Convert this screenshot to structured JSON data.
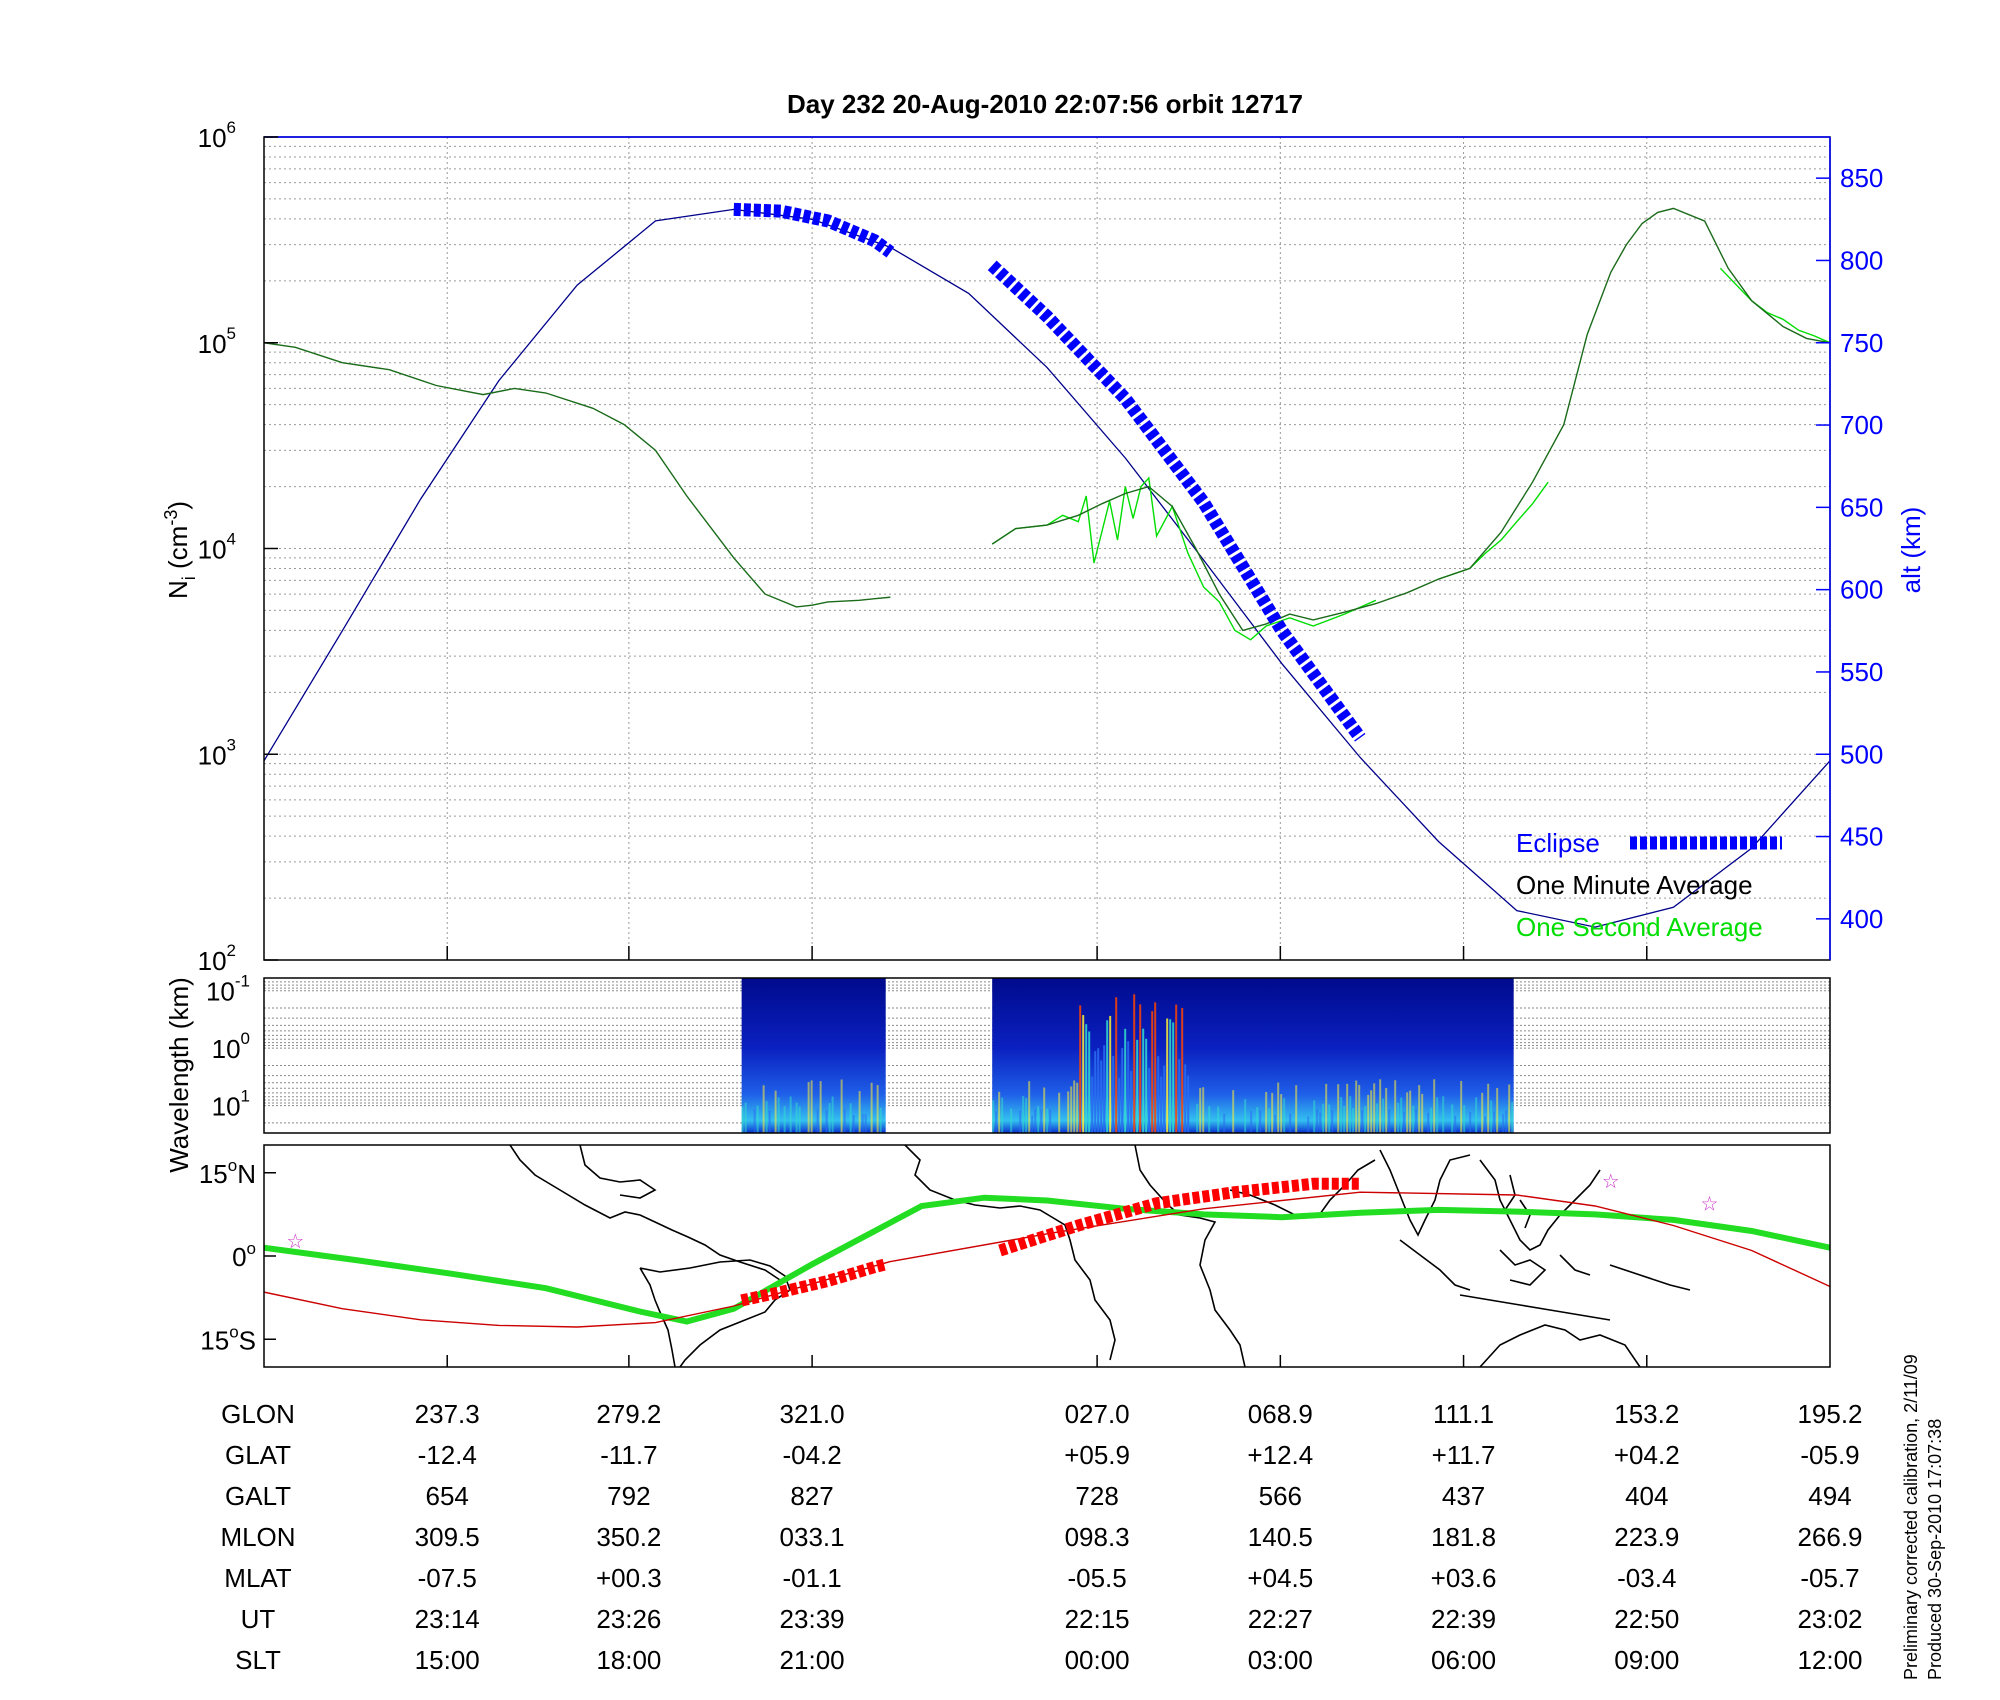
{
  "title": "Day 232  20-Aug-2010 22:07:56   orbit 12717",
  "colors": {
    "eclipse": "#0000ff",
    "one_minute": "#000000",
    "one_second": "#00dd00",
    "altitude": "#00008b",
    "trajectory": "#22dd22",
    "eclipse_track": "#ff0000",
    "magnetic_equator": "#cc0000",
    "star": "#cc33cc"
  },
  "chart_data": [
    {
      "type": "line",
      "panel": "density",
      "xlabel": "",
      "ylabel": "N_i (cm^-3)",
      "ylabel_left": "N",
      "ylabel_left_sub": "i",
      "ylabel_left_rest": "(cm",
      "ylabel_left_sup": "-3",
      "ylabel_left_close": ")",
      "y_scale": "log",
      "ylim": [
        100,
        1000000
      ],
      "y_ticks": [
        {
          "value": 100,
          "base": "10",
          "exp": "2"
        },
        {
          "value": 1000,
          "base": "10",
          "exp": "3"
        },
        {
          "value": 10000,
          "base": "10",
          "exp": "4"
        },
        {
          "value": 100000,
          "base": "10",
          "exp": "5"
        },
        {
          "value": 1000000,
          "base": "10",
          "exp": "6"
        }
      ],
      "y2label": "alt (km)",
      "y2lim": [
        375,
        875
      ],
      "y2_ticks": [
        400,
        450,
        500,
        550,
        600,
        650,
        700,
        750,
        800,
        850
      ],
      "xlim": [
        0,
        1
      ],
      "legend_position": "bottom-right",
      "legend": [
        {
          "label": "Eclipse",
          "color": "#0000ff",
          "marker": "dashed-thick"
        },
        {
          "label": "One Minute Average",
          "color": "#000000"
        },
        {
          "label": "One Second Average",
          "color": "#00dd00"
        }
      ],
      "series": [
        {
          "name": "One Minute Average",
          "segments": [
            {
              "x": [
                0.0,
                0.02,
                0.05,
                0.08,
                0.11,
                0.14,
                0.16,
                0.18,
                0.21,
                0.23,
                0.25,
                0.27,
                0.3,
                0.32,
                0.34,
                0.35,
                0.36,
                0.38,
                0.39,
                0.4
              ],
              "y": [
                100000,
                95000,
                80000,
                74000,
                62000,
                56000,
                60000,
                57000,
                48000,
                40000,
                30000,
                18000,
                9000,
                6000,
                5200,
                5300,
                5500,
                5600,
                5700,
                5800
              ]
            },
            {
              "x": [
                0.465,
                0.48,
                0.5,
                0.52,
                0.535,
                0.55,
                0.565,
                0.58,
                0.595,
                0.61,
                0.625,
                0.64,
                0.655,
                0.67,
                0.69,
                0.71,
                0.73,
                0.75,
                0.77,
                0.79,
                0.81,
                0.83,
                0.845,
                0.86,
                0.87,
                0.88,
                0.89,
                0.9,
                0.92,
                0.935,
                0.95,
                0.97,
                0.985,
                1.0
              ],
              "y": [
                10500,
                12500,
                13000,
                14500,
                16500,
                18500,
                20000,
                16000,
                10000,
                6000,
                4000,
                4300,
                4800,
                4500,
                4900,
                5400,
                6100,
                7100,
                8000,
                12000,
                21000,
                40000,
                110000,
                220000,
                300000,
                380000,
                430000,
                450000,
                390000,
                230000,
                160000,
                120000,
                105000,
                100000
              ]
            }
          ]
        },
        {
          "name": "One Second Average",
          "segments": [
            {
              "x": [
                0.465,
                0.48,
                0.5,
                0.51,
                0.52,
                0.525,
                0.53,
                0.54,
                0.545,
                0.55,
                0.555,
                0.56,
                0.565,
                0.57,
                0.58,
                0.59,
                0.6,
                0.61,
                0.62,
                0.63,
                0.64,
                0.655,
                0.67,
                0.69,
                0.71
              ],
              "y": [
                10500,
                12500,
                13000,
                14500,
                13500,
                18000,
                8500,
                17000,
                11000,
                20000,
                14000,
                20000,
                22000,
                11500,
                16000,
                9500,
                6500,
                5500,
                4000,
                3600,
                4200,
                4600,
                4200,
                4800,
                5600
              ]
            },
            {
              "x": [
                0.75,
                0.77,
                0.78,
                0.79,
                0.8,
                0.81,
                0.82
              ],
              "y": [
                7100,
                8000,
                9500,
                11000,
                13500,
                16500,
                21000
              ]
            },
            {
              "x": [
                0.93,
                0.95,
                0.96,
                0.97,
                0.98,
                0.99,
                1.0
              ],
              "y": [
                230000,
                160000,
                140000,
                130000,
                115000,
                108000,
                100000
              ]
            }
          ]
        },
        {
          "name": "Altitude",
          "axis": "right",
          "x": [
            0.0,
            0.05,
            0.1,
            0.15,
            0.2,
            0.25,
            0.3,
            0.35,
            0.4,
            0.45,
            0.5,
            0.55,
            0.6,
            0.65,
            0.7,
            0.75,
            0.8,
            0.85,
            0.9,
            0.95,
            1.0
          ],
          "y": [
            496,
            575,
            655,
            727,
            785,
            824,
            831,
            825,
            808,
            780,
            735,
            680,
            618,
            555,
            498,
            447,
            405,
            395,
            407,
            443,
            496
          ]
        }
      ],
      "eclipse_segments": [
        {
          "x": [
            0.3,
            0.33,
            0.36,
            0.39,
            0.4
          ],
          "alt": [
            831,
            830,
            824,
            812,
            805
          ]
        },
        {
          "x": [
            0.465,
            0.5,
            0.55,
            0.6,
            0.65,
            0.7
          ],
          "alt": [
            797,
            766,
            716,
            653,
            575,
            510
          ]
        }
      ]
    },
    {
      "type": "heatmap",
      "panel": "spectrogram",
      "ylabel": "Wavelength (km)",
      "y_scale": "log",
      "ylim": [
        30,
        0.06
      ],
      "y_ticks": [
        {
          "value": 0.1,
          "base": "10",
          "exp": "-1"
        },
        {
          "value": 1,
          "base": "10",
          "exp": "0"
        },
        {
          "value": 10,
          "base": "10",
          "exp": "1"
        }
      ],
      "blocks": [
        {
          "x0": 0.305,
          "x1": 0.397
        },
        {
          "x0": 0.465,
          "x1": 0.798
        }
      ]
    },
    {
      "type": "line",
      "panel": "map",
      "ylabel": "",
      "ylim": [
        -20,
        20
      ],
      "y_ticks": [
        {
          "value": 15,
          "text": "15",
          "deg": "o",
          "hemi": "N"
        },
        {
          "value": 0,
          "text": "0",
          "deg": "o",
          "hemi": ""
        },
        {
          "value": -15,
          "text": "15",
          "deg": "o",
          "hemi": "S"
        }
      ],
      "series": [
        {
          "name": "trajectory",
          "x": [
            0.0,
            0.06,
            0.12,
            0.18,
            0.24,
            0.27,
            0.3,
            0.35,
            0.42,
            0.46,
            0.5,
            0.55,
            0.6,
            0.65,
            0.7,
            0.75,
            0.8,
            0.85,
            0.9,
            0.95,
            1.0
          ],
          "y": [
            1.5,
            -0.8,
            -3.2,
            -5.8,
            -10.0,
            -11.8,
            -9.5,
            -1.5,
            9.0,
            10.5,
            10.0,
            8.5,
            7.5,
            7.0,
            7.8,
            8.3,
            8.0,
            7.5,
            6.5,
            4.5,
            1.5
          ]
        },
        {
          "name": "magnetic-equator",
          "x": [
            0.0,
            0.05,
            0.1,
            0.15,
            0.2,
            0.25,
            0.3,
            0.35,
            0.4,
            0.5,
            0.6,
            0.7,
            0.8,
            0.85,
            0.9,
            0.95,
            1.0
          ],
          "y": [
            -6.5,
            -9.5,
            -11.5,
            -12.5,
            -12.8,
            -12.0,
            -9.0,
            -5.0,
            -1.0,
            4.0,
            8.5,
            11.5,
            11.0,
            9.0,
            5.5,
            1.0,
            -5.5
          ]
        },
        {
          "name": "eclipse-track",
          "x": [
            0.305,
            0.33,
            0.36,
            0.39,
            0.397
          ],
          "y": [
            -8.0,
            -6.5,
            -4.5,
            -2.0,
            -1.5
          ]
        },
        {
          "name": "eclipse-track",
          "x": [
            0.47,
            0.52,
            0.57,
            0.62,
            0.67,
            0.7
          ],
          "y": [
            1.0,
            5.5,
            9.5,
            11.5,
            13.0,
            13.0
          ]
        }
      ],
      "stars": [
        {
          "x": 0.02,
          "y": 2.7
        },
        {
          "x": 0.86,
          "y": 13.5
        },
        {
          "x": 0.923,
          "y": 9.5
        }
      ]
    }
  ],
  "table": {
    "rows": [
      {
        "label": "GLON",
        "values": [
          "237.3",
          "279.2",
          "321.0",
          "027.0",
          "068.9",
          "111.1",
          "153.2",
          "195.2"
        ]
      },
      {
        "label": "GLAT",
        "values": [
          "-12.4",
          "-11.7",
          "-04.2",
          "+05.9",
          "+12.4",
          "+11.7",
          "+04.2",
          "-05.9"
        ]
      },
      {
        "label": "GALT",
        "values": [
          "654",
          "792",
          "827",
          "728",
          "566",
          "437",
          "404",
          "494"
        ]
      },
      {
        "label": "MLON",
        "values": [
          "309.5",
          "350.2",
          "033.1",
          "098.3",
          "140.5",
          "181.8",
          "223.9",
          "266.9"
        ]
      },
      {
        "label": "MLAT",
        "values": [
          "-07.5",
          "+00.3",
          "-01.1",
          "-05.5",
          "+04.5",
          "+03.6",
          "-03.4",
          "-05.7"
        ]
      },
      {
        "label": "UT",
        "values": [
          "23:14",
          "23:26",
          "23:39",
          "22:15",
          "22:27",
          "22:39",
          "22:50",
          "23:02"
        ]
      },
      {
        "label": "SLT",
        "values": [
          "15:00",
          "18:00",
          "21:00",
          "00:00",
          "03:00",
          "06:00",
          "09:00",
          "12:00"
        ]
      }
    ],
    "tick_fractions": [
      0.117,
      0.233,
      0.35,
      0.532,
      0.649,
      0.766,
      0.883,
      1.0
    ]
  },
  "footnote": {
    "line1": "Preliminary corrected calibration, 2/11/09",
    "line2": "Produced 30-Sep-2010 17:07:38"
  }
}
